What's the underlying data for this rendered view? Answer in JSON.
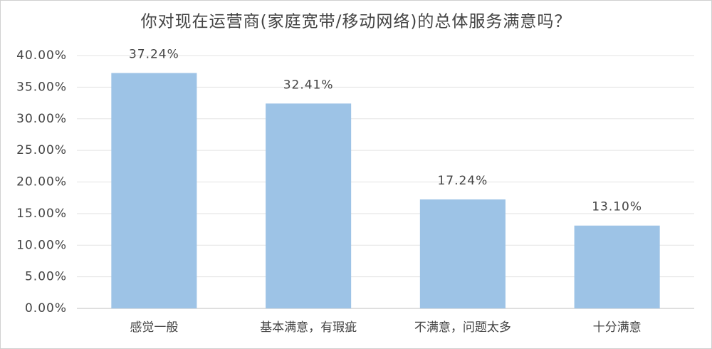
{
  "chart_data": {
    "type": "bar",
    "title": "你对现在运营商(家庭宽带/移动网络)的总体服务满意吗？",
    "categories": [
      "感觉一般",
      "基本满意，有瑕疵",
      "不满意，问题太多",
      "十分满意"
    ],
    "values": [
      37.24,
      32.41,
      17.24,
      13.1
    ],
    "value_labels": [
      "37.24%",
      "32.41%",
      "17.24%",
      "13.10%"
    ],
    "color": "#9dc3e6",
    "ylim": [
      0,
      40
    ],
    "yticks": [
      {
        "value": 0,
        "label": "0.00%"
      },
      {
        "value": 5,
        "label": "5.00%"
      },
      {
        "value": 10,
        "label": "10.00%"
      },
      {
        "value": 15,
        "label": "15.00%"
      },
      {
        "value": 20,
        "label": "20.00%"
      },
      {
        "value": 25,
        "label": "25.00%"
      },
      {
        "value": 30,
        "label": "30.00%"
      },
      {
        "value": 35,
        "label": "35.00%"
      },
      {
        "value": 40,
        "label": "40.00%"
      }
    ],
    "grid": true
  }
}
